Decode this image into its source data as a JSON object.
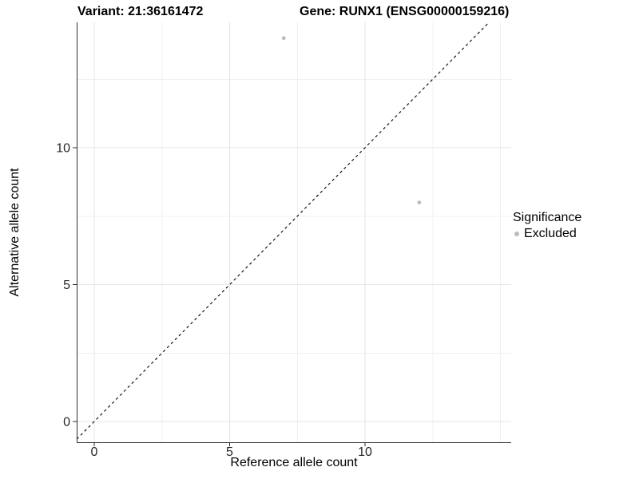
{
  "header": {
    "variant_title": "Variant: 21:36161472",
    "gene_title": "Gene: RUNX1 (ENSG00000159216)"
  },
  "axes": {
    "x_label": "Reference allele count",
    "y_label": "Alternative allele count"
  },
  "legend": {
    "title": "Significance",
    "items": [
      {
        "label": "Excluded",
        "color": "#bcbcbc"
      }
    ]
  },
  "colors": {
    "background": "#ffffff",
    "point": "#bcbcbc",
    "axis_line": "#2b2b2b",
    "tick_text": "#262626",
    "grid_major": "#e4e4e4",
    "grid_minor": "#f0f0f0",
    "reference_line": "#000000"
  },
  "chart_data": {
    "type": "scatter",
    "title": "Variant: 21:36161472  |  Gene: RUNX1 (ENSG00000159216)",
    "xlabel": "Reference allele count",
    "ylabel": "Alternative allele count",
    "series": [
      {
        "name": "Excluded",
        "color": "#bcbcbc",
        "points": [
          {
            "x": 7,
            "y": 14
          },
          {
            "x": 12,
            "y": 8
          }
        ]
      }
    ],
    "reference_line": {
      "type": "identity",
      "equation": "y = x",
      "style": "dashed"
    },
    "x_ticks": [
      0,
      5,
      10
    ],
    "y_ticks": [
      0,
      5,
      10
    ],
    "x_grid": {
      "major": [
        0,
        5,
        10
      ],
      "minor": [
        2.5,
        7.5,
        12.5,
        15
      ]
    },
    "y_grid": {
      "major": [
        0,
        5,
        10
      ],
      "minor": [
        2.5,
        7.5,
        12.5
      ]
    },
    "xlim": [
      -0.7,
      15.4
    ],
    "ylim": [
      -0.8,
      14.6
    ],
    "grid": true,
    "legend_position": "right",
    "legend_title": "Significance"
  }
}
